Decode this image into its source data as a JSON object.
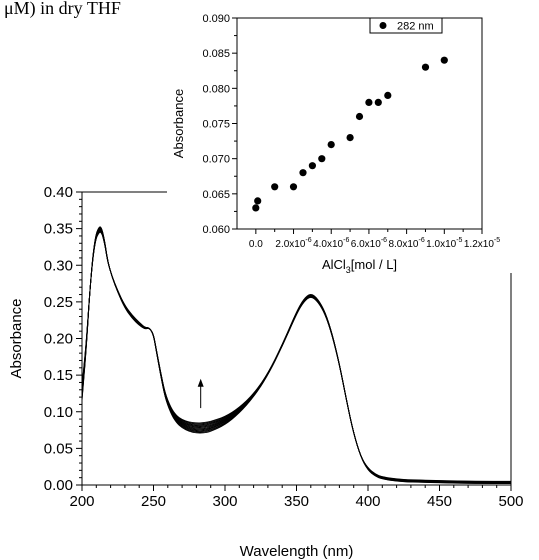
{
  "caption_fragment": "μM) in dry THF",
  "chart_data": [
    {
      "id": "main",
      "type": "line",
      "title": "",
      "xlabel": "Wavelength (nm)",
      "ylabel": "Absorbance",
      "xlim": [
        200,
        500
      ],
      "ylim": [
        0.0,
        0.4
      ],
      "xticks": [
        200,
        250,
        300,
        350,
        400,
        450,
        500
      ],
      "xtick_labels": [
        "200",
        "250",
        "300",
        "350",
        "400",
        "450",
        "500"
      ],
      "yticks": [
        0.0,
        0.05,
        0.1,
        0.15,
        0.2,
        0.25,
        0.3,
        0.35,
        0.4
      ],
      "ytick_labels": [
        "0.00",
        "0.05",
        "0.10",
        "0.15",
        "0.20",
        "0.25",
        "0.30",
        "0.35",
        "0.40"
      ],
      "grid": false,
      "line_color": "#000000",
      "annotation": "upward arrow near 283 nm marking increasing absorbance",
      "arrow": {
        "x": 283,
        "y_start": 0.105,
        "y_end": 0.145
      },
      "curve_count": 12,
      "base_curve": {
        "x": [
          200,
          203,
          206,
          209,
          212,
          214,
          216,
          218,
          221,
          225,
          230,
          235,
          240,
          244,
          247,
          250,
          252,
          255,
          258,
          262,
          266,
          270,
          275,
          280,
          285,
          290,
          300,
          310,
          320,
          330,
          340,
          350,
          355,
          360,
          365,
          370,
          375,
          380,
          385,
          390,
          395,
          400,
          405,
          410,
          420,
          430,
          450,
          475,
          500
        ],
        "y": [
          0.125,
          0.19,
          0.28,
          0.335,
          0.35,
          0.347,
          0.33,
          0.305,
          0.285,
          0.265,
          0.245,
          0.232,
          0.222,
          0.215,
          0.215,
          0.205,
          0.182,
          0.15,
          0.12,
          0.098,
          0.085,
          0.078,
          0.073,
          0.071,
          0.071,
          0.073,
          0.082,
          0.098,
          0.12,
          0.15,
          0.19,
          0.235,
          0.252,
          0.26,
          0.252,
          0.235,
          0.205,
          0.165,
          0.115,
          0.07,
          0.038,
          0.02,
          0.012,
          0.008,
          0.005,
          0.004,
          0.003,
          0.002,
          0.002
        ]
      }
    },
    {
      "id": "inset",
      "type": "scatter",
      "title": "",
      "xlabel_main": "AlCl",
      "xlabel_sub": "3",
      "xlabel_rest": "[mol / L]",
      "ylabel": "Absorbance",
      "xlim": [
        -1e-06,
        1.2e-05
      ],
      "ylim": [
        0.06,
        0.09
      ],
      "xticks": [
        0.0,
        2e-06,
        4e-06,
        6e-06,
        8e-06,
        1e-05,
        1.2e-05
      ],
      "xtick_labels": [
        {
          "base": "0.0",
          "exp": ""
        },
        {
          "base": "2.0x10",
          "exp": "-6"
        },
        {
          "base": "4.0x10",
          "exp": "-6"
        },
        {
          "base": "6.0x10",
          "exp": "-6"
        },
        {
          "base": "8.0x10",
          "exp": "-6"
        },
        {
          "base": "1.0x10",
          "exp": "-5"
        },
        {
          "base": "1.2x10",
          "exp": "-5"
        }
      ],
      "yticks": [
        0.06,
        0.065,
        0.07,
        0.075,
        0.08,
        0.085,
        0.09
      ],
      "ytick_labels": [
        "0.060",
        "0.065",
        "0.070",
        "0.075",
        "0.080",
        "0.085",
        "0.090"
      ],
      "legend": {
        "label": "282 nm",
        "placement": "top"
      },
      "marker_color": "#000000",
      "series": [
        {
          "name": "282 nm",
          "x": [
            0.0,
            1e-07,
            1e-06,
            2e-06,
            2.5e-06,
            3e-06,
            3.5e-06,
            4e-06,
            5e-06,
            5.5e-06,
            6e-06,
            6.5e-06,
            7e-06,
            9e-06,
            1e-05
          ],
          "y": [
            0.063,
            0.064,
            0.066,
            0.066,
            0.068,
            0.069,
            0.07,
            0.072,
            0.073,
            0.076,
            0.078,
            0.078,
            0.079,
            0.083,
            0.084
          ]
        }
      ]
    }
  ]
}
